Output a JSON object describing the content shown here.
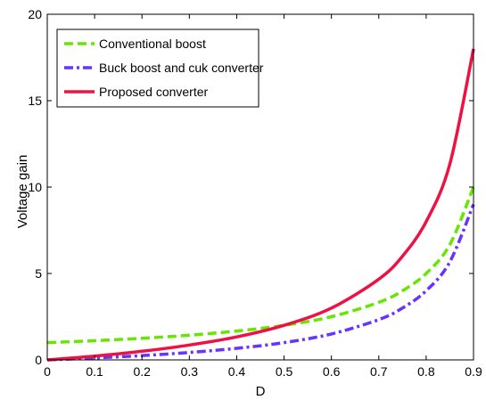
{
  "chart_data": {
    "type": "line",
    "title": "",
    "xlabel": "D",
    "ylabel": "Voltage gain",
    "xlim": [
      0,
      0.9
    ],
    "ylim": [
      0,
      20
    ],
    "xticks": [
      "0",
      "0.1",
      "0.2",
      "0.3",
      "0.4",
      "0.5",
      "0.6",
      "0.7",
      "0.8",
      "0.9"
    ],
    "yticks": [
      "0",
      "5",
      "10",
      "15",
      "20"
    ],
    "grid": false,
    "legend_position": "top-left",
    "x": [
      0,
      0.1,
      0.2,
      0.3,
      0.4,
      0.5,
      0.6,
      0.7,
      0.75,
      0.8,
      0.85,
      0.9
    ],
    "series": [
      {
        "name": "Conventional boost",
        "color": "#66e600",
        "style": "dashed",
        "values": [
          1.0,
          1.11,
          1.25,
          1.43,
          1.67,
          2.0,
          2.5,
          3.33,
          4.0,
          5.0,
          6.67,
          10.0
        ]
      },
      {
        "name": "Buck boost and cuk converter",
        "color": "#6633ff",
        "style": "dashdot",
        "values": [
          0.0,
          0.11,
          0.25,
          0.43,
          0.67,
          1.0,
          1.5,
          2.33,
          3.0,
          4.0,
          5.67,
          9.0
        ]
      },
      {
        "name": "Proposed converter",
        "color": "#ee1144",
        "style": "solid",
        "values": [
          0.0,
          0.22,
          0.5,
          0.86,
          1.33,
          2.0,
          3.0,
          4.67,
          6.0,
          8.0,
          11.33,
          18.0
        ]
      }
    ]
  }
}
